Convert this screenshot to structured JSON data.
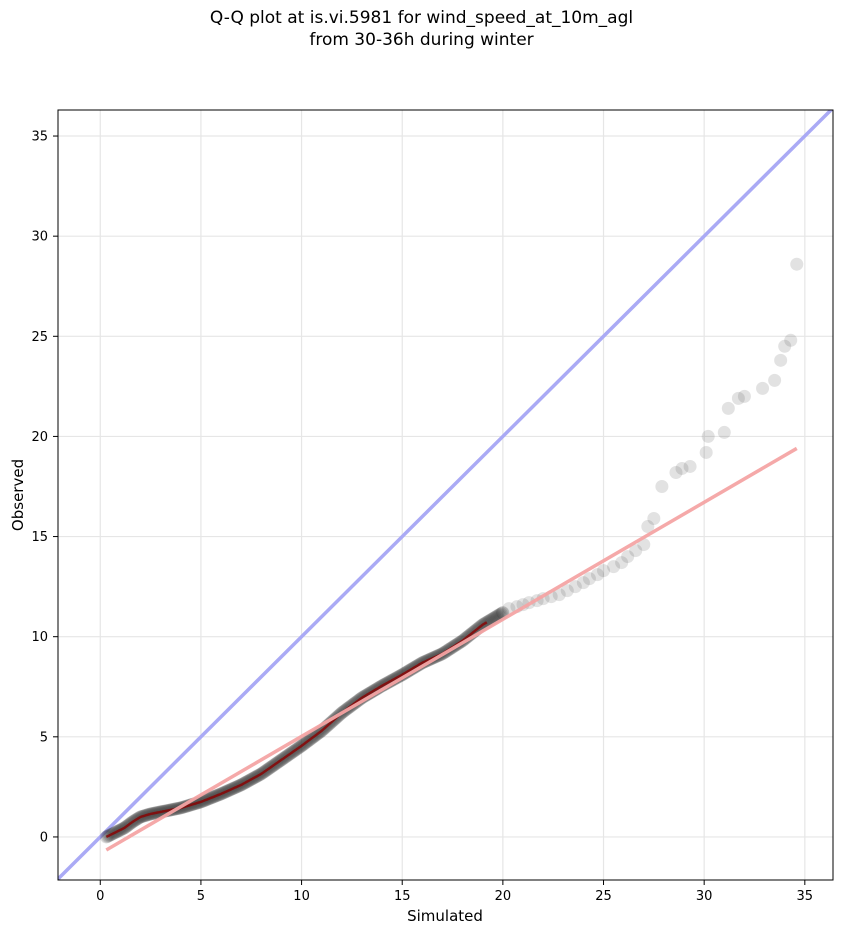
{
  "chart_data": {
    "type": "scatter",
    "title_lines": [
      "Q-Q plot at is.vi.5981 for wind_speed_at_10m_agl",
      "from 30-36h during winter"
    ],
    "xlabel": "Simulated",
    "ylabel": "Observed",
    "xlim": [
      -2.1,
      36.4
    ],
    "ylim": [
      -2.15,
      36.3
    ],
    "xticks": [
      0,
      5,
      10,
      15,
      20,
      25,
      30,
      35
    ],
    "yticks": [
      0,
      5,
      10,
      15,
      20,
      25,
      30,
      35
    ],
    "grid": true,
    "colors": {
      "points": "#333333",
      "identity_line": "#aaaaf5",
      "fit_line": "#f4a4a4",
      "dense_overlay": "#8b0000"
    },
    "identity_line": {
      "x": [
        -2.1,
        36.4
      ],
      "y": [
        -2.1,
        36.4
      ]
    },
    "fit_line": {
      "x": [
        0.3,
        34.6
      ],
      "y": [
        -0.65,
        19.4
      ]
    },
    "tail_points": [
      [
        20.0,
        11.2
      ],
      [
        20.3,
        11.4
      ],
      [
        20.7,
        11.5
      ],
      [
        21.0,
        11.6
      ],
      [
        21.3,
        11.7
      ],
      [
        21.7,
        11.8
      ],
      [
        22.0,
        11.9
      ],
      [
        22.4,
        12.0
      ],
      [
        22.8,
        12.1
      ],
      [
        23.2,
        12.3
      ],
      [
        23.6,
        12.5
      ],
      [
        24.0,
        12.7
      ],
      [
        24.3,
        12.9
      ],
      [
        24.7,
        13.1
      ],
      [
        25.0,
        13.3
      ],
      [
        25.5,
        13.5
      ],
      [
        25.9,
        13.7
      ],
      [
        26.2,
        14.0
      ],
      [
        26.6,
        14.3
      ],
      [
        27.0,
        14.6
      ],
      [
        27.2,
        15.5
      ],
      [
        27.5,
        15.9
      ],
      [
        27.9,
        17.5
      ],
      [
        28.6,
        18.2
      ],
      [
        28.9,
        18.4
      ],
      [
        29.3,
        18.5
      ],
      [
        30.1,
        19.2
      ],
      [
        30.2,
        20.0
      ],
      [
        31.0,
        20.2
      ],
      [
        31.2,
        21.4
      ],
      [
        31.7,
        21.9
      ],
      [
        32.0,
        22.0
      ],
      [
        32.9,
        22.4
      ],
      [
        33.5,
        22.8
      ],
      [
        33.8,
        23.8
      ],
      [
        34.0,
        24.5
      ],
      [
        34.3,
        24.8
      ],
      [
        34.6,
        28.6
      ]
    ]
  }
}
